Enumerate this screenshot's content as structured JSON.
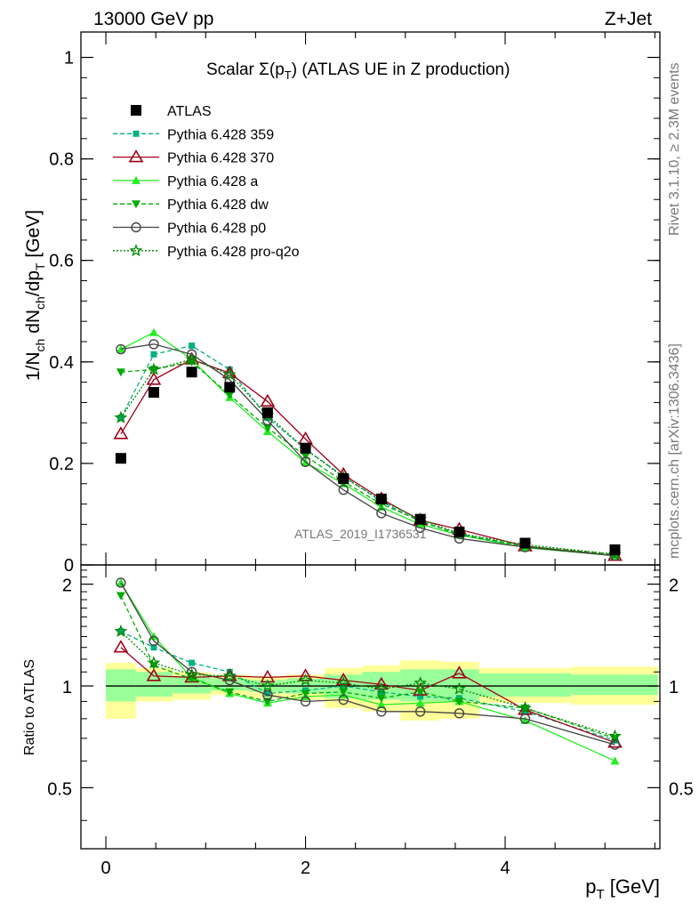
{
  "header": {
    "left": "13000 GeV pp",
    "right": "Z+Jet"
  },
  "side_text": {
    "top": "Rivet 3.1.10, ≥ 2.3M events",
    "bottom": "mcplots.cern.ch [arXiv:1306.3436]"
  },
  "colors": {
    "atlas": "#000000",
    "p359": "#00b080",
    "p370": "#a0001a",
    "pa": "#22ee22",
    "pdw": "#00aa00",
    "pp0": "#444444",
    "pq2o": "#008800",
    "band_inner": "#99ff99",
    "band_outer": "#ffff99"
  },
  "chart_data": [
    {
      "type": "line",
      "title": "Scalar Σ(p_T) (ATLAS UE in Z production)",
      "title_parts": {
        "pre": "Scalar Σ(p",
        "sub": "T",
        "post": ") (ATLAS UE in Z production)"
      },
      "watermark": "ATLAS_2019_I1736531",
      "ylabel": "1/N_ch dN_ch/dp_T [GeV]",
      "ylabel_parts": {
        "a": "1/N",
        "a_sub": "ch",
        "b": " dN",
        "b_sub": "ch",
        "c": "/dp",
        "c_sub": "T",
        "d": " [GeV]"
      },
      "xlim": [
        -0.25,
        5.55
      ],
      "ylim": [
        0,
        1.05
      ],
      "yticks": [
        0,
        0.2,
        0.4,
        0.6,
        0.8,
        1
      ],
      "ytick_labels": [
        "0",
        "0.2",
        "0.4",
        "0.6",
        "0.8",
        "1"
      ],
      "x": [
        0.15,
        0.48,
        0.86,
        1.24,
        1.62,
        2.0,
        2.38,
        2.76,
        3.15,
        3.54,
        4.2,
        5.1
      ],
      "series": [
        {
          "name": "ATLAS",
          "values": [
            0.21,
            0.34,
            0.38,
            0.35,
            0.3,
            0.23,
            0.17,
            0.13,
            0.09,
            0.065,
            0.043,
            0.03
          ]
        },
        {
          "name": "Pythia 6.428 359",
          "values": [
            0.29,
            0.415,
            0.432,
            0.385,
            0.29,
            0.228,
            0.175,
            0.125,
            0.085,
            0.061,
            0.037,
            0.018
          ]
        },
        {
          "name": "Pythia 6.428 370",
          "values": [
            0.258,
            0.365,
            0.405,
            0.378,
            0.322,
            0.248,
            0.178,
            0.13,
            0.088,
            0.07,
            0.037,
            0.018
          ]
        },
        {
          "name": "Pythia 6.428 a",
          "values": [
            0.425,
            0.458,
            0.405,
            0.33,
            0.263,
            0.202,
            0.16,
            0.114,
            0.08,
            0.059,
            0.034,
            0.018
          ]
        },
        {
          "name": "Pythia 6.428 dw",
          "values": [
            0.38,
            0.385,
            0.4,
            0.335,
            0.27,
            0.215,
            0.164,
            0.12,
            0.087,
            0.059,
            0.037,
            0.021
          ]
        },
        {
          "name": "Pythia 6.428 p0",
          "values": [
            0.425,
            0.435,
            0.415,
            0.365,
            0.285,
            0.203,
            0.148,
            0.102,
            0.073,
            0.052,
            0.035,
            0.018
          ]
        },
        {
          "name": "Pythia 6.428 pro-q2o",
          "values": [
            0.29,
            0.385,
            0.405,
            0.375,
            0.295,
            0.228,
            0.173,
            0.127,
            0.09,
            0.062,
            0.04,
            0.021
          ]
        }
      ]
    },
    {
      "type": "line",
      "ylabel": "Ratio to ATLAS",
      "xlabel": "p_T [GeV]",
      "xlabel_parts": {
        "pre": "p",
        "sub": "T",
        "post": " [GeV]"
      },
      "xlim": [
        -0.25,
        5.55
      ],
      "ylim": [
        0.33,
        2.28
      ],
      "xticks": [
        0,
        2,
        4
      ],
      "xtick_labels": [
        "0",
        "2",
        "4"
      ],
      "yticks": [
        0.5,
        1,
        2
      ],
      "ytick_labels": [
        "0.5",
        "1",
        "2"
      ],
      "reference": 1,
      "bins": [
        {
          "lo": 0.0,
          "hi": 0.3,
          "inner": [
            0.9,
            1.12
          ],
          "outer": [
            0.8,
            1.17
          ]
        },
        {
          "lo": 0.3,
          "hi": 0.67,
          "inner": [
            0.93,
            1.1
          ],
          "outer": [
            0.9,
            1.13
          ]
        },
        {
          "lo": 0.67,
          "hi": 1.05,
          "inner": [
            0.95,
            1.07
          ],
          "outer": [
            0.91,
            1.1
          ]
        },
        {
          "lo": 1.05,
          "hi": 1.43,
          "inner": [
            0.97,
            1.05
          ],
          "outer": [
            0.94,
            1.08
          ]
        },
        {
          "lo": 1.43,
          "hi": 1.81,
          "inner": [
            0.96,
            1.04
          ],
          "outer": [
            0.92,
            1.07
          ]
        },
        {
          "lo": 1.81,
          "hi": 2.19,
          "inner": [
            0.95,
            1.05
          ],
          "outer": [
            0.91,
            1.08
          ]
        },
        {
          "lo": 2.19,
          "hi": 2.57,
          "inner": [
            0.92,
            1.08
          ],
          "outer": [
            0.86,
            1.13
          ]
        },
        {
          "lo": 2.57,
          "hi": 2.95,
          "inner": [
            0.91,
            1.1
          ],
          "outer": [
            0.84,
            1.15
          ]
        },
        {
          "lo": 2.95,
          "hi": 3.35,
          "inner": [
            0.9,
            1.12
          ],
          "outer": [
            0.79,
            1.19
          ]
        },
        {
          "lo": 3.35,
          "hi": 3.74,
          "inner": [
            0.9,
            1.12
          ],
          "outer": [
            0.8,
            1.18
          ]
        },
        {
          "lo": 3.74,
          "hi": 4.66,
          "inner": [
            0.93,
            1.09
          ],
          "outer": [
            0.89,
            1.13
          ]
        },
        {
          "lo": 4.66,
          "hi": 5.53,
          "inner": [
            0.94,
            1.08
          ],
          "outer": [
            0.88,
            1.14
          ]
        }
      ],
      "x": [
        0.15,
        0.48,
        0.86,
        1.24,
        1.62,
        2.0,
        2.38,
        2.76,
        3.15,
        3.54,
        4.2,
        5.1
      ],
      "series": [
        {
          "name": "Pythia 6.428 359",
          "values": [
            1.45,
            1.3,
            1.17,
            1.1,
            0.95,
            0.97,
            1.0,
            0.96,
            0.93,
            0.92,
            0.84,
            0.69
          ]
        },
        {
          "name": "Pythia 6.428 370",
          "values": [
            1.3,
            1.07,
            1.06,
            1.07,
            1.06,
            1.07,
            1.04,
            1.01,
            0.97,
            1.09,
            0.85,
            0.68
          ]
        },
        {
          "name": "Pythia 6.428 a",
          "values": [
            2.02,
            1.4,
            1.06,
            0.95,
            0.89,
            0.93,
            0.94,
            0.88,
            0.89,
            0.9,
            0.79,
            0.6
          ]
        },
        {
          "name": "Pythia 6.428 dw",
          "values": [
            1.85,
            1.15,
            1.05,
            0.96,
            0.9,
            0.95,
            0.96,
            0.92,
            0.96,
            0.9,
            0.86,
            0.7
          ]
        },
        {
          "name": "Pythia 6.428 p0",
          "values": [
            2.02,
            1.36,
            1.1,
            1.04,
            0.94,
            0.9,
            0.91,
            0.84,
            0.84,
            0.83,
            0.8,
            0.67
          ]
        },
        {
          "name": "Pythia 6.428 pro-q2o",
          "values": [
            1.45,
            1.17,
            1.08,
            1.07,
            1.0,
            1.04,
            1.02,
            0.98,
            1.02,
            0.98,
            0.86,
            0.71
          ]
        }
      ]
    }
  ]
}
